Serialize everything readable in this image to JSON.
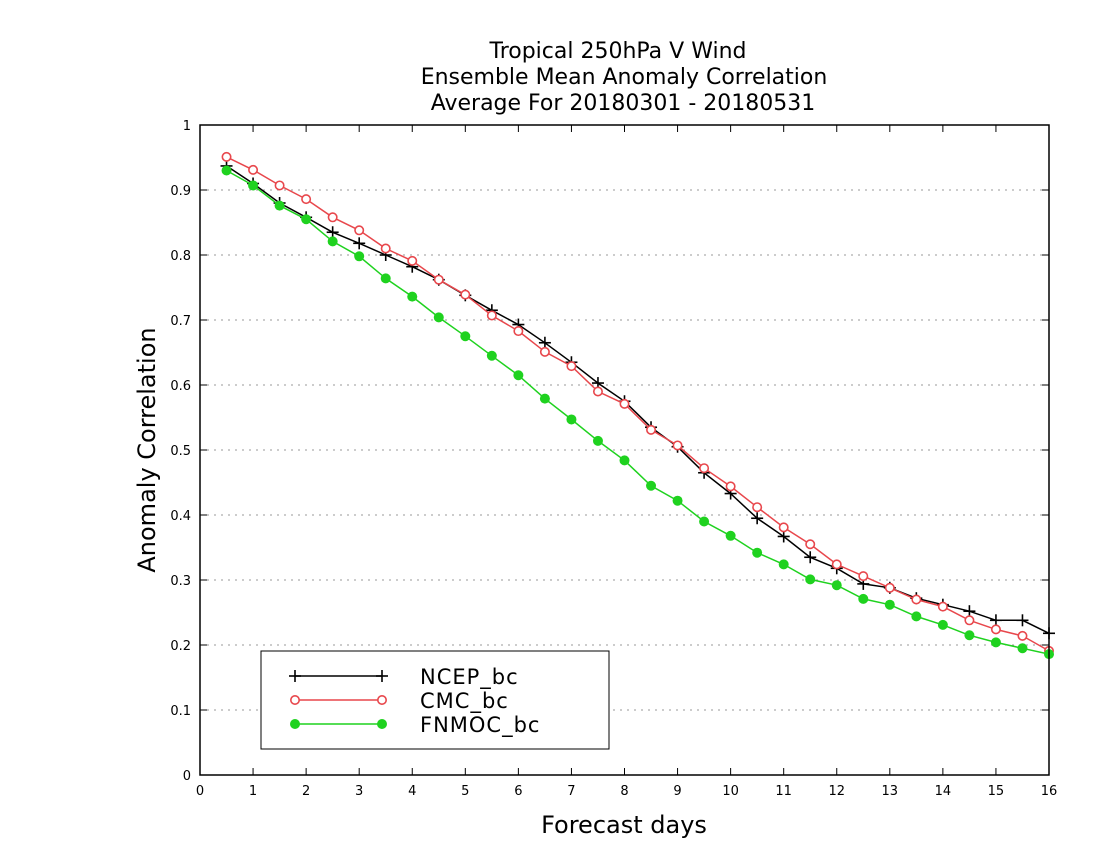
{
  "chart_data": {
    "type": "line",
    "title": [
      "Tropical 250hPa V Wind",
      "Ensemble Mean Anomaly Correlation",
      "Average For 20180301 - 20180531"
    ],
    "xlabel": "Forecast days",
    "ylabel": "Anomaly Correlation",
    "xlim": [
      0,
      16
    ],
    "ylim": [
      0,
      1
    ],
    "xticks": [
      "0",
      "1",
      "2",
      "3",
      "4",
      "5",
      "6",
      "7",
      "8",
      "9",
      "10",
      "11",
      "12",
      "13",
      "14",
      "15",
      "16"
    ],
    "yticks": [
      "0",
      "0.1",
      "0.2",
      "0.3",
      "0.4",
      "0.5",
      "0.6",
      "0.7",
      "0.8",
      "0.9",
      "1"
    ],
    "grid": true,
    "legend_position": "bottom-left",
    "x": [
      0.5,
      1,
      1.5,
      2,
      2.5,
      3,
      3.5,
      4,
      4.5,
      5,
      5.5,
      6,
      6.5,
      7,
      7.5,
      8,
      8.5,
      9,
      9.5,
      10,
      10.5,
      11,
      11.5,
      12,
      12.5,
      13,
      13.5,
      14,
      14.5,
      15,
      15.5,
      16
    ],
    "series": [
      {
        "name": "NCEP_bc",
        "color": "#000000",
        "marker": "plus",
        "values": [
          0.937,
          0.91,
          0.88,
          0.858,
          0.835,
          0.818,
          0.8,
          0.782,
          0.762,
          0.738,
          0.715,
          0.693,
          0.665,
          0.635,
          0.603,
          0.575,
          0.535,
          0.505,
          0.465,
          0.433,
          0.395,
          0.367,
          0.335,
          0.318,
          0.294,
          0.288,
          0.272,
          0.262,
          0.252,
          0.238,
          0.238,
          0.218
        ]
      },
      {
        "name": "CMC_bc",
        "color": "#e8474c",
        "marker": "open-circle",
        "values": [
          0.951,
          0.931,
          0.907,
          0.886,
          0.858,
          0.838,
          0.81,
          0.791,
          0.762,
          0.739,
          0.707,
          0.683,
          0.651,
          0.629,
          0.59,
          0.571,
          0.531,
          0.507,
          0.472,
          0.444,
          0.412,
          0.381,
          0.355,
          0.324,
          0.306,
          0.288,
          0.27,
          0.259,
          0.238,
          0.224,
          0.214,
          0.191
        ]
      },
      {
        "name": "FNMOC_bc",
        "color": "#1fd21f",
        "marker": "filled-circle",
        "values": [
          0.93,
          0.907,
          0.876,
          0.855,
          0.821,
          0.798,
          0.764,
          0.736,
          0.704,
          0.675,
          0.645,
          0.615,
          0.579,
          0.547,
          0.514,
          0.484,
          0.445,
          0.422,
          0.39,
          0.368,
          0.342,
          0.324,
          0.301,
          0.292,
          0.271,
          0.262,
          0.244,
          0.231,
          0.215,
          0.204,
          0.195,
          0.186
        ]
      }
    ]
  }
}
